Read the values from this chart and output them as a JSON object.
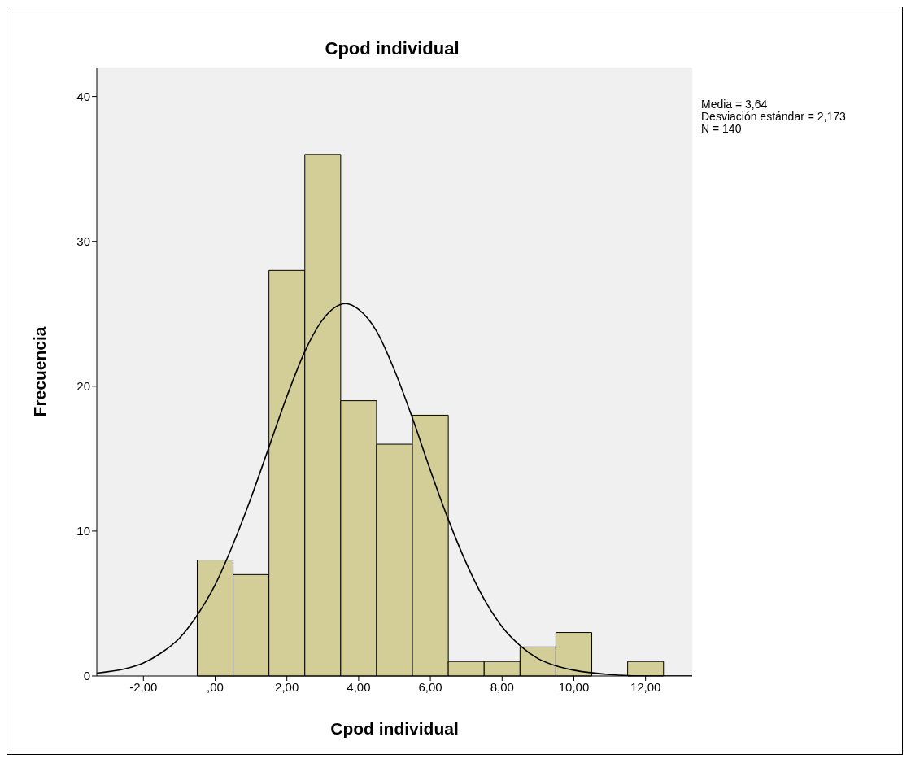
{
  "chart_data": {
    "type": "histogram",
    "title": "Cpod individual",
    "xlabel": "Cpod individual",
    "ylabel": "Frecuencia",
    "annotations": [
      "Media = 3,64",
      "Desviación estándar = 2,173",
      "N = 140"
    ],
    "bins": [
      -0.5,
      0.5,
      1.5,
      2.5,
      3.5,
      4.5,
      5.5,
      6.5,
      7.5,
      8.5,
      9.5,
      10.5,
      11.5,
      12.5
    ],
    "values": [
      8,
      7,
      28,
      36,
      19,
      16,
      18,
      1,
      1,
      2,
      3,
      0,
      1
    ],
    "color": "#d3ce97",
    "series": [
      {
        "type": "line",
        "color": "#000000",
        "x": [
          -3.3,
          -2.5,
          -2,
          -1.5,
          -1,
          -0.5,
          0,
          0.5,
          1,
          1.5,
          2,
          2.5,
          3,
          3.64,
          4,
          4.5,
          5,
          5.5,
          6,
          6.5,
          7,
          7.5,
          8,
          8.5,
          9,
          9.5,
          10,
          11,
          12,
          13.3
        ],
        "values": [
          0.2,
          0.5,
          0.9,
          1.6,
          2.6,
          4.2,
          6.3,
          9.1,
          12.3,
          15.8,
          19.3,
          22.4,
          24.6,
          25.7,
          25.3,
          23.8,
          21.1,
          17.8,
          14.2,
          10.8,
          7.8,
          5.3,
          3.4,
          2.1,
          1.2,
          0.7,
          0.4,
          0.1,
          0,
          0
        ]
      }
    ],
    "marker": "none",
    "line_style": "solid",
    "grid": false,
    "xlim": [
      -3.3,
      13.3
    ],
    "xticks": [
      {
        "value": -2,
        "label": "-2,00"
      },
      {
        "value": 0,
        "label": ",00"
      },
      {
        "value": 2,
        "label": "2,00"
      },
      {
        "value": 4,
        "label": "4,00"
      },
      {
        "value": 6,
        "label": "6,00"
      },
      {
        "value": 8,
        "label": "8,00"
      },
      {
        "value": 10,
        "label": "10,00"
      },
      {
        "value": 12,
        "label": "12,00"
      }
    ],
    "ylim": [
      0,
      42
    ],
    "yticks": [
      0,
      10,
      20,
      30,
      40
    ]
  }
}
